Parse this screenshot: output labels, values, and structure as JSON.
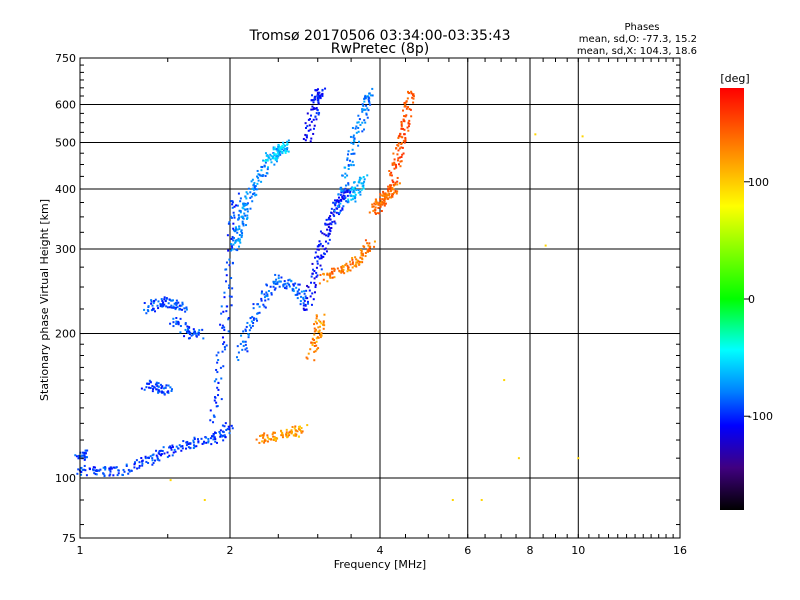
{
  "chart_data": {
    "type": "scatter",
    "title": "Tromsø 20170506 03:34:00-03:35:43",
    "subtitle": "RwPretec (8p)",
    "xlabel": "Frequency [MHz]",
    "ylabel": "Stationary phase Virtual Height [km]",
    "x_scale": "log",
    "y_scale": "log",
    "xlim": [
      1,
      16
    ],
    "ylim": [
      75,
      750
    ],
    "x_ticks": [
      1,
      2,
      4,
      6,
      8,
      10,
      16
    ],
    "y_ticks": [
      75,
      100,
      200,
      300,
      400,
      500,
      600,
      750
    ],
    "grid": true,
    "phases": {
      "heading": "Phases",
      "line1": "mean, sd,O: -77.3, 15.2",
      "line2": "mean, sd,X: 104.3, 18.6"
    },
    "colorbar": {
      "label": "[deg]",
      "range": [
        -180,
        180
      ],
      "ticks": [
        100,
        0,
        -100
      ],
      "colors": [
        "#ff0000",
        "#ff8000",
        "#ffff00",
        "#00ff00",
        "#00ffff",
        "#0080ff",
        "#0000ff",
        "#400080",
        "#000000"
      ]
    },
    "traces": [
      {
        "freq": [
          1.0,
          1.1,
          1.2,
          1.35,
          1.45,
          1.6,
          1.75,
          1.9,
          2.0
        ],
        "height": [
          104,
          103,
          103,
          108,
          112,
          116,
          119,
          122,
          128
        ],
        "phase": -95
      },
      {
        "freq": [
          1.0,
          1.03
        ],
        "height": [
          110,
          113
        ],
        "phase": -95
      },
      {
        "freq": [
          1.35,
          1.45,
          1.5
        ],
        "height": [
          156,
          154,
          152
        ],
        "phase": -95
      },
      {
        "freq": [
          1.36,
          1.45,
          1.55,
          1.62
        ],
        "height": [
          225,
          233,
          231,
          226
        ],
        "phase": -92
      },
      {
        "freq": [
          1.55,
          1.65,
          1.75
        ],
        "height": [
          213,
          200,
          200
        ],
        "phase": -92
      },
      {
        "freq": [
          1.85,
          1.92,
          1.98,
          2.03,
          2.06
        ],
        "height": [
          130,
          175,
          240,
          330,
          390
        ],
        "phase": -95
      },
      {
        "freq": [
          2.05,
          2.1,
          2.15,
          2.2,
          2.3,
          2.45,
          2.6
        ],
        "height": [
          300,
          330,
          360,
          390,
          430,
          470,
          500
        ],
        "phase": -78
      },
      {
        "freq": [
          2.1,
          2.2,
          2.35,
          2.5,
          2.7,
          2.85
        ],
        "height": [
          180,
          210,
          240,
          260,
          250,
          230
        ],
        "phase": -88
      },
      {
        "freq": [
          2.4,
          2.5,
          2.6
        ],
        "height": [
          465,
          478,
          490
        ],
        "phase": -55
      },
      {
        "freq": [
          2.3,
          2.45,
          2.65,
          2.8
        ],
        "height": [
          121,
          122,
          124,
          126
        ],
        "phase": 125
      },
      {
        "freq": [
          2.85,
          2.95,
          3.0,
          3.05
        ],
        "height": [
          505,
          580,
          625,
          640
        ],
        "phase": -108
      },
      {
        "freq": [
          2.85,
          2.95,
          3.05,
          3.15,
          3.25,
          3.35,
          3.45
        ],
        "height": [
          220,
          265,
          300,
          330,
          360,
          380,
          400
        ],
        "phase": -110
      },
      {
        "freq": [
          2.9,
          3.0,
          3.05
        ],
        "height": [
          180,
          200,
          215
        ],
        "phase": 130
      },
      {
        "freq": [
          3.1,
          3.3,
          3.5,
          3.7,
          3.85
        ],
        "height": [
          260,
          270,
          278,
          290,
          310
        ],
        "phase": 135
      },
      {
        "freq": [
          3.3,
          3.45,
          3.6,
          3.75,
          3.8
        ],
        "height": [
          360,
          440,
          520,
          590,
          640
        ],
        "phase": -80
      },
      {
        "freq": [
          3.5,
          3.6,
          3.7
        ],
        "height": [
          380,
          400,
          420
        ],
        "phase": -65
      },
      {
        "freq": [
          3.9,
          4.0,
          4.1,
          4.2,
          4.3
        ],
        "height": [
          360,
          375,
          385,
          395,
          405
        ],
        "phase": 140
      },
      {
        "freq": [
          4.25,
          4.35,
          4.45,
          4.55,
          4.6
        ],
        "height": [
          420,
          470,
          520,
          580,
          640
        ],
        "phase": 150
      },
      {
        "freq": [
          1.52,
          1.78,
          2.75,
          3.05,
          5.6,
          6.4,
          7.1,
          7.6,
          8.2,
          8.6,
          10.0,
          10.2
        ],
        "height": [
          99,
          90,
          122,
          210,
          90,
          90,
          160,
          110,
          520,
          305,
          110,
          515
        ],
        "phase": 110
      }
    ]
  }
}
